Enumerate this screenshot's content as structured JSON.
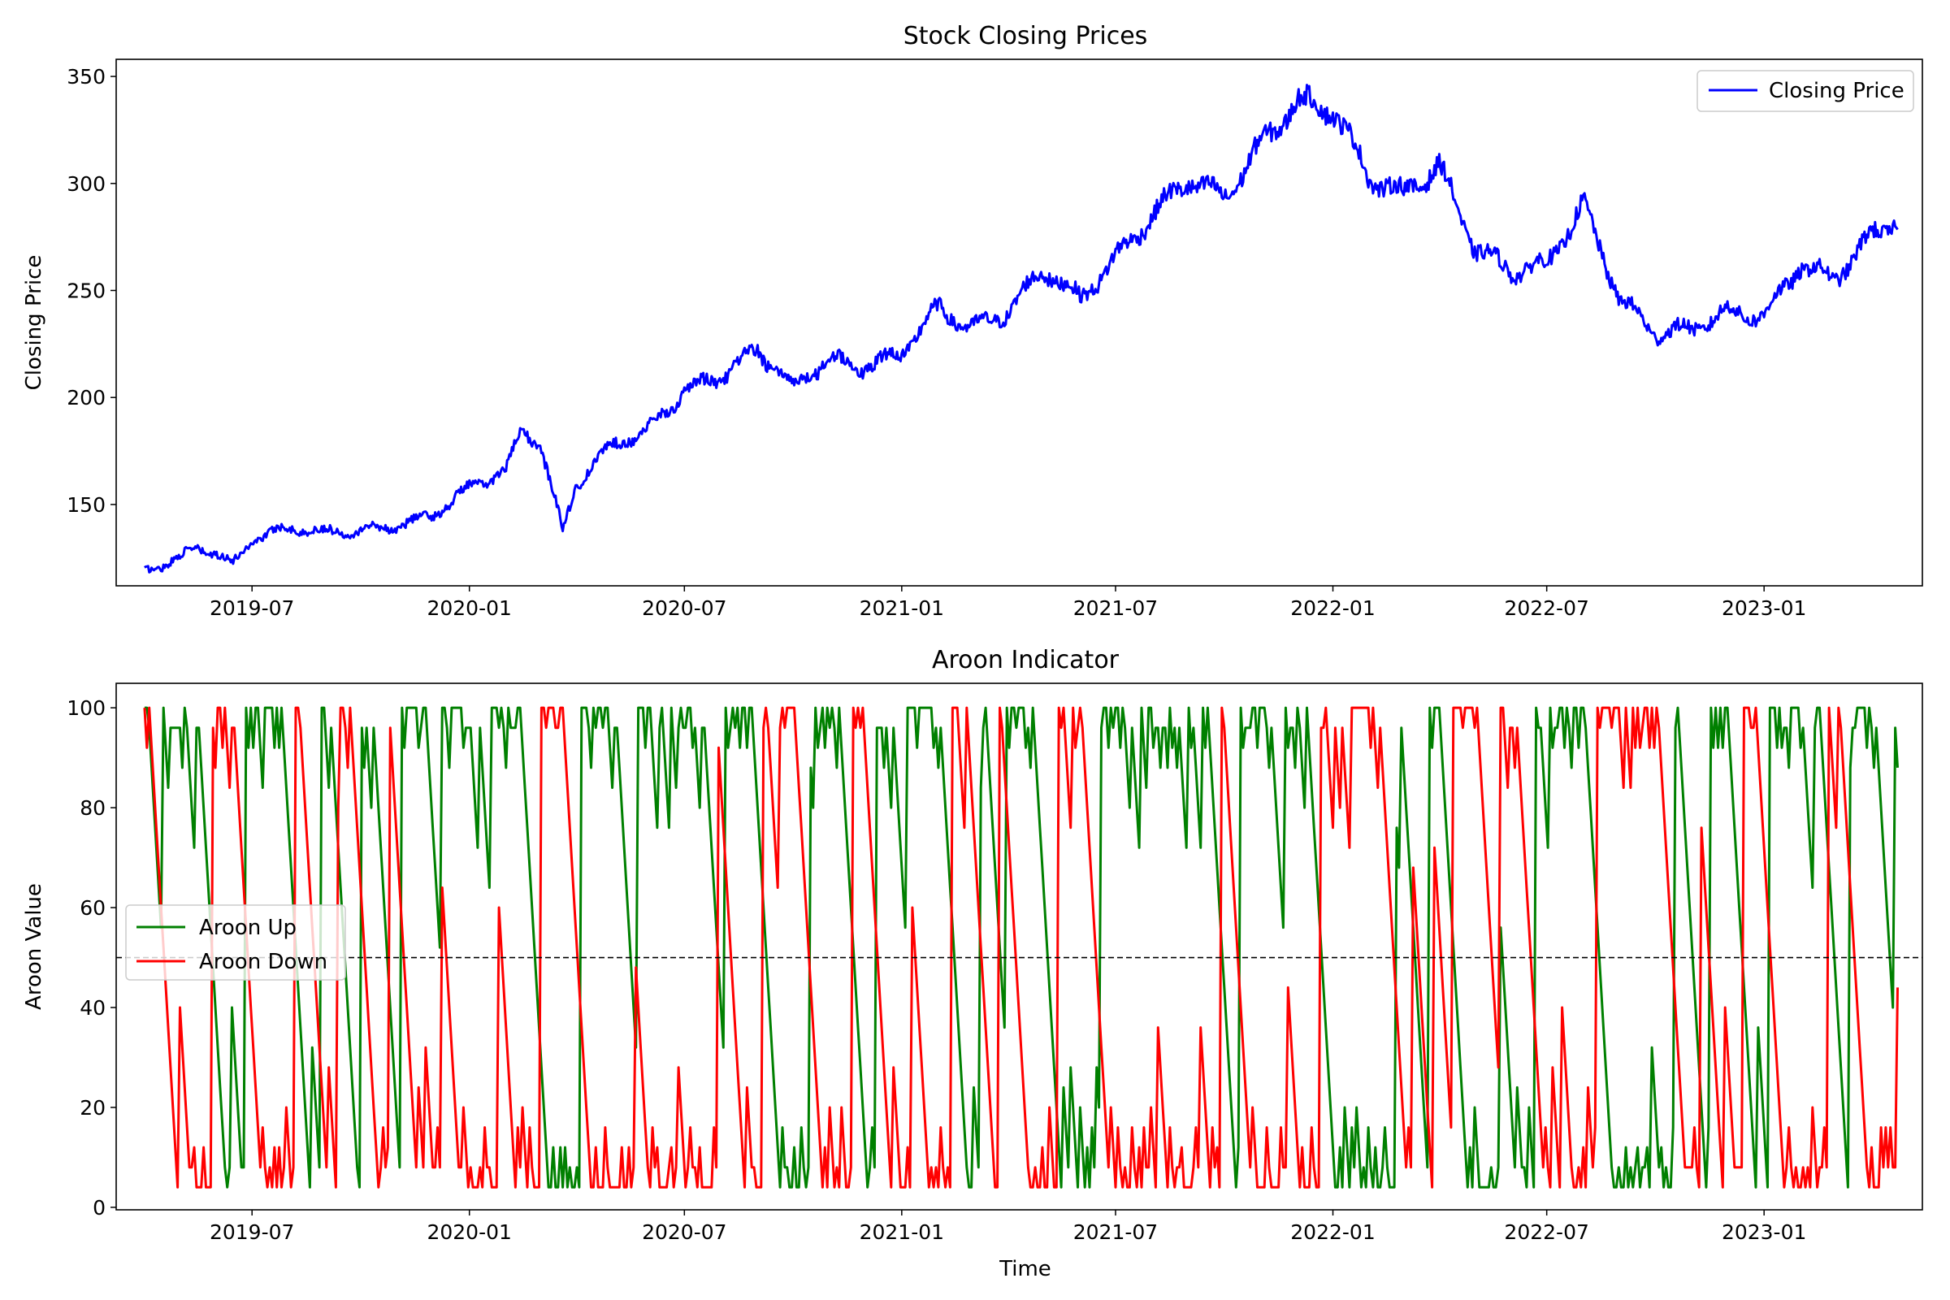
{
  "chart_data": [
    {
      "type": "line",
      "title": "Stock Closing Prices",
      "xlabel": "",
      "ylabel": "Closing Price",
      "x_range": [
        "2019-03-08",
        "2023-05-15"
      ],
      "ylim": [
        112,
        358
      ],
      "x_ticks": [
        "2019-07",
        "2020-01",
        "2020-07",
        "2021-01",
        "2021-07",
        "2022-01",
        "2022-07",
        "2023-01"
      ],
      "y_ticks": [
        150,
        200,
        250,
        300,
        350
      ],
      "legend_position": "top-right",
      "series": [
        {
          "name": "Closing Price",
          "color": "#0000ff",
          "x": [
            "2019-04-01",
            "2019-05-01",
            "2019-05-15",
            "2019-06-01",
            "2019-06-15",
            "2019-07-01",
            "2019-08-01",
            "2019-09-01",
            "2019-10-01",
            "2019-11-01",
            "2019-12-01",
            "2020-01-01",
            "2020-02-01",
            "2020-02-15",
            "2020-03-01",
            "2020-03-20",
            "2020-04-01",
            "2020-05-01",
            "2020-06-01",
            "2020-07-01",
            "2020-08-01",
            "2020-09-01",
            "2020-10-01",
            "2020-11-01",
            "2020-12-01",
            "2021-01-01",
            "2021-02-01",
            "2021-03-01",
            "2021-04-01",
            "2021-05-01",
            "2021-06-01",
            "2021-07-01",
            "2021-08-01",
            "2021-09-01",
            "2021-10-01",
            "2021-11-01",
            "2021-12-01",
            "2022-01-01",
            "2022-02-01",
            "2022-03-01",
            "2022-04-01",
            "2022-05-01",
            "2022-06-01",
            "2022-07-01",
            "2022-08-01",
            "2022-09-01",
            "2022-10-01",
            "2022-11-01",
            "2022-12-01",
            "2023-01-01",
            "2023-02-01",
            "2023-03-01",
            "2023-04-01",
            "2023-04-24"
          ],
          "y": [
            119,
            125,
            130,
            127,
            122,
            134,
            139,
            137,
            138,
            140,
            145,
            158,
            166,
            185,
            178,
            138,
            160,
            178,
            185,
            203,
            210,
            222,
            205,
            218,
            214,
            221,
            242,
            232,
            240,
            260,
            246,
            265,
            285,
            302,
            293,
            318,
            338,
            335,
            303,
            295,
            308,
            270,
            259,
            262,
            290,
            246,
            230,
            232,
            240,
            238,
            262,
            255,
            275,
            283
          ]
        }
      ]
    },
    {
      "type": "line",
      "title": "Aroon Indicator",
      "xlabel": "Time",
      "ylabel": "Aroon Value",
      "x_range": [
        "2019-03-08",
        "2023-05-15"
      ],
      "ylim": [
        -0.5,
        104.9
      ],
      "x_ticks": [
        "2019-07",
        "2020-01",
        "2020-07",
        "2021-01",
        "2021-07",
        "2022-01",
        "2022-07",
        "2023-01"
      ],
      "y_ticks": [
        0,
        20,
        40,
        60,
        80,
        100
      ],
      "reference_line": 50,
      "legend_position": "center-left",
      "series": [
        {
          "name": "Aroon Up",
          "color": "#008000"
        },
        {
          "name": "Aroon Down",
          "color": "#ff0000"
        }
      ]
    }
  ]
}
